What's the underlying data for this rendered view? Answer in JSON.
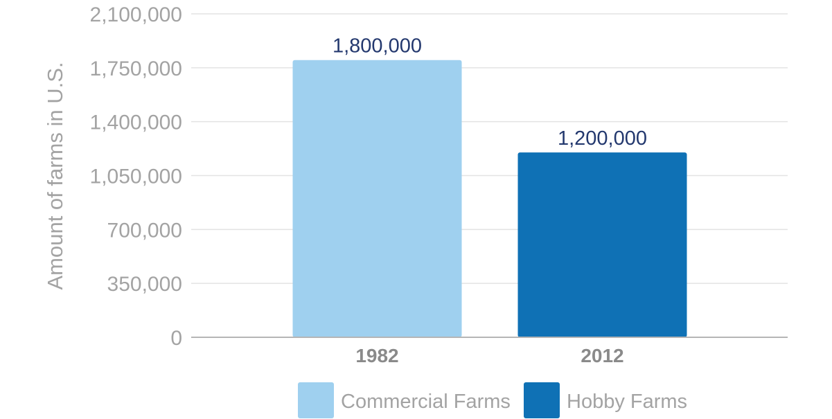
{
  "chart_data": {
    "type": "bar",
    "title": "",
    "xlabel": "",
    "ylabel": "Amount of farms in U.S.",
    "ylim": [
      0,
      2100000
    ],
    "yticks": [
      0,
      350000,
      700000,
      1050000,
      1400000,
      1750000,
      2100000
    ],
    "ytick_labels": [
      "0",
      "350,000",
      "700,000",
      "1,050,000",
      "1,400,000",
      "1,750,000",
      "2,100,000"
    ],
    "categories": [
      "1982",
      "2012"
    ],
    "values": [
      1800000,
      1200000
    ],
    "data_labels": [
      "1,800,000",
      "1,200,000"
    ],
    "bar_colors": [
      "#9fd0ef",
      "#0f71b5"
    ],
    "grid": true,
    "legend_position": "bottom",
    "legend": [
      {
        "name": "Commercial Farms",
        "color": "#9fd0ef"
      },
      {
        "name": "Hobby Farms",
        "color": "#0f71b5"
      }
    ]
  }
}
